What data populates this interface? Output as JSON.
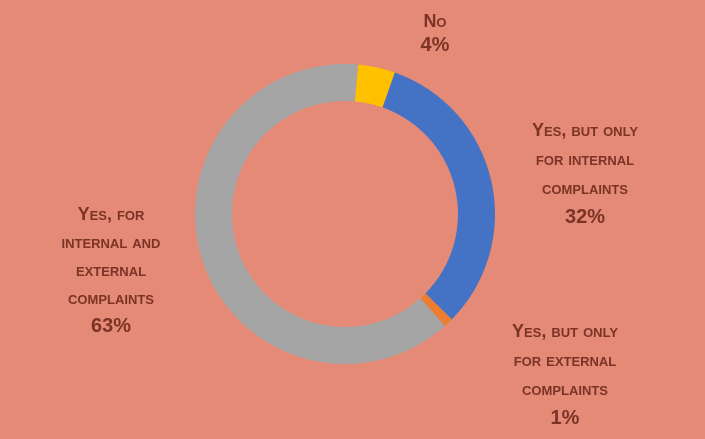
{
  "chart_data": {
    "type": "pie",
    "style": "donut",
    "slices": [
      {
        "label": "No",
        "value": 4,
        "pct_label": "4%",
        "color": "#ffc000",
        "label_lines": [
          "No"
        ]
      },
      {
        "label": "Yes, but only for internal complaints",
        "value": 32,
        "pct_label": "32%",
        "color": "#4472c4",
        "label_lines": [
          "Yes, but only",
          "for internal",
          "complaints"
        ]
      },
      {
        "label": "Yes, but only for external complaints",
        "value": 1,
        "pct_label": "1%",
        "color": "#ed7d31",
        "label_lines": [
          "Yes, but only",
          "for external",
          "complaints"
        ]
      },
      {
        "label": "Yes, for internal and external complaints",
        "value": 63,
        "pct_label": "63%",
        "color": "#a5a5a5",
        "label_lines": [
          "Yes, for",
          "internal and",
          "external",
          "complaints"
        ]
      }
    ],
    "background": "#e58a77",
    "label_color": "#7b3326"
  }
}
